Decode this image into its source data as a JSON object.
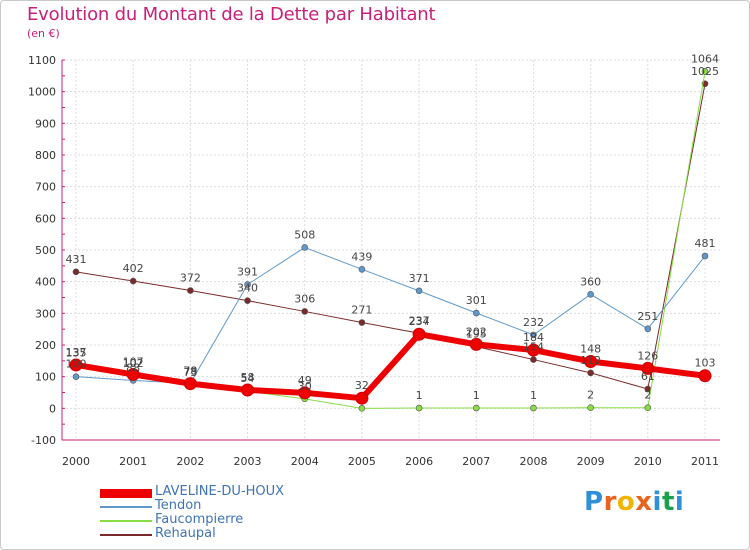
{
  "header": {
    "title": "Evolution du Montant de la Dette par Habitant",
    "unit": "(en €)"
  },
  "logo": {
    "letters": [
      "P",
      "r",
      "o",
      "x",
      "i",
      "t",
      "i"
    ],
    "colors": [
      "#2f8fd8",
      "#e8641c",
      "#f0b400",
      "#e8641c",
      "#2f8fd8",
      "#1aa24a",
      "#2f8fd8"
    ]
  },
  "chart_data": {
    "type": "line",
    "title": "Evolution du Montant de la Dette par Habitant",
    "ylabel": "(en €)",
    "x": [
      "2000",
      "2001",
      "2002",
      "2003",
      "2004",
      "2005",
      "2006",
      "2007",
      "2008",
      "2009",
      "2010",
      "2011"
    ],
    "ylim": [
      -100,
      1100
    ],
    "yticks": [
      -100,
      0,
      100,
      200,
      300,
      400,
      500,
      600,
      700,
      800,
      900,
      1000,
      1100
    ],
    "grid": true,
    "legend_position": "bottom-left",
    "series": [
      {
        "name": "Rehaupal",
        "color": "#7a2a2a",
        "width": 1,
        "values": [
          431,
          402,
          372,
          340,
          306,
          271,
          237,
          195,
          154,
          112,
          61,
          1025
        ],
        "labels": [
          "431",
          "402",
          "372",
          "340",
          "306",
          "271",
          "237",
          "195",
          "154",
          "112",
          "61",
          "1025"
        ]
      },
      {
        "name": "Faucompierre",
        "color": "#88dd44",
        "width": 1,
        "values": [
          135,
          102,
          73,
          54,
          30,
          0,
          1,
          1,
          1,
          2,
          2,
          1064
        ],
        "labels": [
          "135",
          "102",
          "73",
          "54",
          "30",
          "",
          "1",
          "1",
          "1",
          "2",
          "2",
          "1064"
        ]
      },
      {
        "name": "Tendon",
        "color": "#5f99cc",
        "width": 1,
        "values": [
          100,
          88,
          79,
          391,
          508,
          439,
          371,
          301,
          232,
          360,
          251,
          481
        ],
        "labels": [
          "100",
          "88",
          "79",
          "391",
          "508",
          "439",
          "371",
          "301",
          "232",
          "360",
          "251",
          "481"
        ]
      },
      {
        "name": "LAVELINE-DU-HOUX",
        "color": "#ee0000",
        "width": 6,
        "values": [
          137,
          107,
          78,
          58,
          49,
          32,
          234,
          202,
          184,
          148,
          126,
          103
        ],
        "labels": [
          "137",
          "107",
          "78",
          "58",
          "49",
          "32",
          "234",
          "202",
          "184",
          "148",
          "126",
          "103"
        ]
      }
    ],
    "legend_order": [
      "LAVELINE-DU-HOUX",
      "Tendon",
      "Faucompierre",
      "Rehaupal"
    ]
  }
}
